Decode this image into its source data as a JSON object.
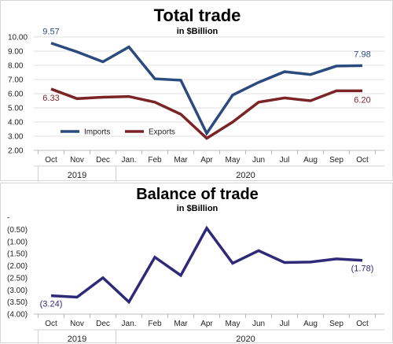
{
  "chart_data": [
    {
      "type": "line",
      "title": "Total trade",
      "subtitle": "in $Billion",
      "categories": [
        "Oct",
        "Nov",
        "Dec",
        "Jan.",
        "Feb",
        "Mar",
        "Apr",
        "May",
        "Jun",
        "Jul",
        "Aug",
        "Sep",
        "Oct"
      ],
      "years": [
        {
          "label": "2019",
          "from": 0,
          "to": 2
        },
        {
          "label": "2020",
          "from": 3,
          "to": 12
        }
      ],
      "yticks": [
        "2.00",
        "3.00",
        "4.00",
        "5.00",
        "6.00",
        "7.00",
        "8.00",
        "9.00",
        "10.00"
      ],
      "ylim": [
        2,
        10
      ],
      "grid": true,
      "legend": "bottom-left",
      "series": [
        {
          "name": "Imports",
          "color": "#2b4a7e",
          "values": [
            9.57,
            8.95,
            8.25,
            9.3,
            7.05,
            6.95,
            3.2,
            5.9,
            6.8,
            7.55,
            7.35,
            7.95,
            7.98
          ],
          "labels": [
            {
              "index": 0,
              "text": "9.57"
            },
            {
              "index": 12,
              "text": "7.98"
            }
          ]
        },
        {
          "name": "Exports",
          "color": "#7b2326",
          "values": [
            6.33,
            5.65,
            5.75,
            5.8,
            5.4,
            4.55,
            2.85,
            4.0,
            5.4,
            5.7,
            5.5,
            6.2,
            6.2
          ],
          "labels": [
            {
              "index": 0,
              "text": "6.33"
            },
            {
              "index": 12,
              "text": "6.20"
            }
          ]
        }
      ]
    },
    {
      "type": "line",
      "title": "Balance of trade",
      "subtitle": "in $Billion",
      "categories": [
        "Oct",
        "Nov",
        "Dec",
        "Jan.",
        "Feb",
        "Mar",
        "Apr",
        "May",
        "Jun",
        "Jul",
        "Aug",
        "Sep",
        "Oct"
      ],
      "years": [
        {
          "label": "2019",
          "from": 0,
          "to": 2
        },
        {
          "label": "2020",
          "from": 3,
          "to": 12
        }
      ],
      "yticks": [
        "-",
        "(0.50)",
        "(1.00)",
        "(1.50)",
        "(2.00)",
        "(2.50)",
        "(3.00)",
        "(3.50)",
        "(4.00)"
      ],
      "ylim": [
        -4,
        0
      ],
      "grid": false,
      "series": [
        {
          "color": "#2e2a78",
          "values": [
            -3.24,
            -3.3,
            -2.5,
            -3.5,
            -1.65,
            -2.4,
            -0.45,
            -1.9,
            -1.38,
            -1.87,
            -1.85,
            -1.72,
            -1.78
          ],
          "labels": [
            {
              "index": 0,
              "text": "(3.24)"
            },
            {
              "index": 12,
              "text": "(1.78)"
            }
          ]
        }
      ]
    }
  ]
}
